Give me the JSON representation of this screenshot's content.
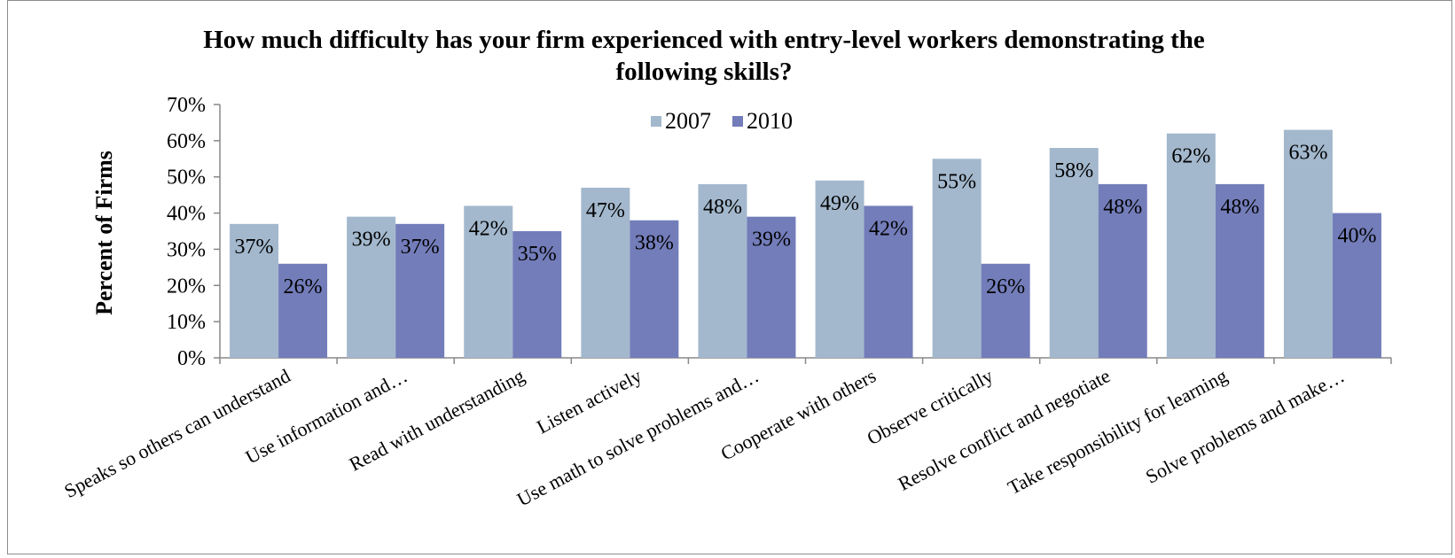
{
  "chart_data": {
    "type": "bar",
    "title_lines": [
      "How much difficulty has your firm experienced with entry-level workers demonstrating the",
      "following skills?"
    ],
    "ylabel": "Percent of Firms",
    "xlabel": "",
    "ylim": [
      0,
      70
    ],
    "y_ticks": [
      "0%",
      "10%",
      "20%",
      "30%",
      "40%",
      "50%",
      "60%",
      "70%"
    ],
    "legend_position": "top-center",
    "grid": false,
    "categories": [
      "Speaks so others can understand",
      "Use information and…",
      "Read with understanding",
      "Listen actively",
      "Use math to solve problems and…",
      "Cooperate with others",
      "Observe critically",
      "Resolve conflict and negotiate",
      "Take responsibility for learning",
      "Solve problems and make…"
    ],
    "series": [
      {
        "name": "2007",
        "color": "#a3b8cd",
        "values": [
          37,
          39,
          42,
          47,
          48,
          49,
          55,
          58,
          62,
          63
        ],
        "labels": [
          "37%",
          "39%",
          "42%",
          "47%",
          "48%",
          "49%",
          "55%",
          "58%",
          "62%",
          "63%"
        ]
      },
      {
        "name": "2010",
        "color": "#737dba",
        "values": [
          26,
          37,
          35,
          38,
          39,
          42,
          26,
          48,
          48,
          40
        ],
        "labels": [
          "26%",
          "37%",
          "35%",
          "38%",
          "39%",
          "42%",
          "26%",
          "48%",
          "48%",
          "40%"
        ]
      }
    ]
  }
}
